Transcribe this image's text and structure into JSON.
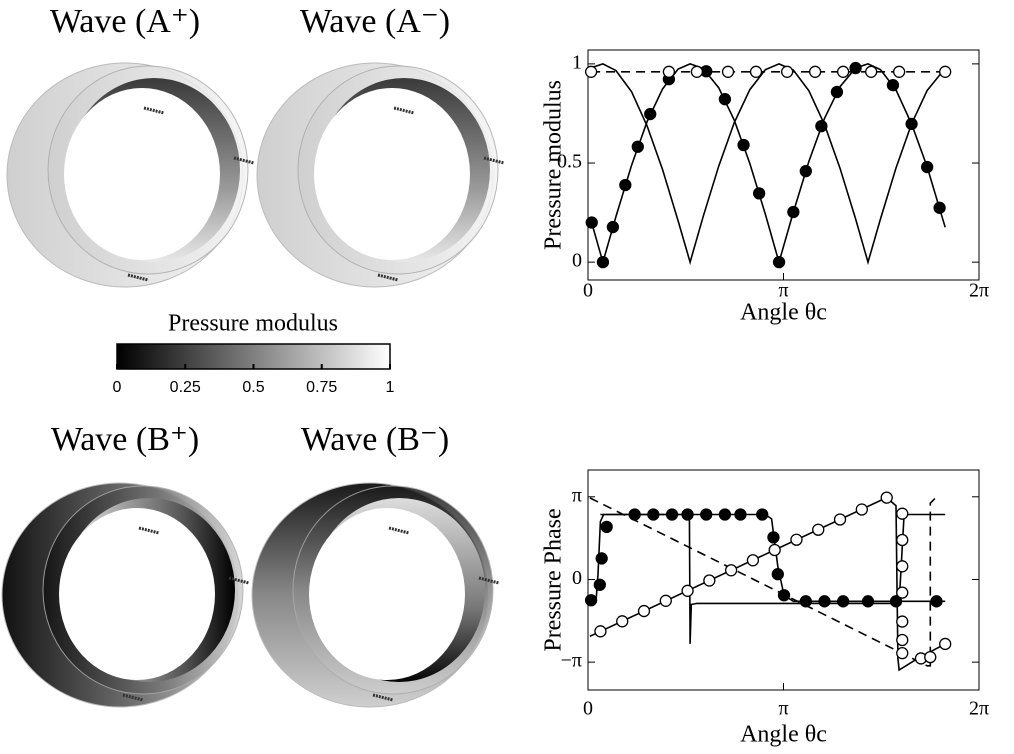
{
  "panels": {
    "labels": [
      "Wave (A⁺)",
      "Wave (A⁻)",
      "Wave (B⁺)",
      "Wave (B⁻)"
    ]
  },
  "colorbar": {
    "title": "Pressure modulus",
    "range": [
      0,
      1
    ],
    "ticks": [
      0,
      0.25,
      0.5,
      0.75,
      1
    ],
    "colors": [
      "#000000",
      "#ffffff"
    ]
  },
  "chart_data": [
    {
      "type": "line",
      "ylabel": "Pressure modulus",
      "xlabel": "Angle θc",
      "xlim": [
        0,
        6.28319
      ],
      "xticks": [
        0,
        {
          "value": 3.14159,
          "label": "π"
        },
        {
          "value": 6.28319,
          "label": "2π"
        }
      ],
      "ylim": [
        -0.09,
        1.07
      ],
      "yticks": [
        0,
        0.5,
        1
      ],
      "series": [
        {
          "line": "solid",
          "marker": "none",
          "color": "#000000",
          "x": [
            0.05,
            0.24,
            0.45,
            0.7,
            0.95,
            1.2,
            1.45,
            1.64,
            1.85,
            2.1,
            2.35,
            2.6,
            2.85,
            3.07,
            3.3,
            3.55,
            3.8,
            4.05,
            4.3,
            4.5,
            4.7,
            4.95,
            5.2,
            5.45,
            5.74
          ],
          "values": [
            0.98,
            1.0,
            0.966,
            0.859,
            0.687,
            0.465,
            0.207,
            0,
            0.229,
            0.484,
            0.703,
            0.87,
            0.971,
            1.0,
            0.968,
            0.864,
            0.694,
            0.474,
            0.218,
            0,
            0.218,
            0.475,
            0.698,
            0.866,
            0.978
          ]
        },
        {
          "line": "solid",
          "marker": "none",
          "color": "#000000",
          "x": [
            0.05,
            0.24,
            0.45,
            0.7,
            0.95,
            1.2,
            1.45,
            1.64,
            1.85,
            2.1,
            2.35,
            2.6,
            2.85,
            3.07,
            3.3,
            3.55,
            3.8,
            4.05,
            4.3,
            4.5,
            4.7,
            4.95,
            5.2,
            5.45,
            5.74
          ],
          "values": [
            0.209,
            0,
            0.231,
            0.489,
            0.709,
            0.875,
            0.974,
            1.0,
            0.977,
            0.88,
            0.717,
            0.498,
            0.241,
            0,
            0.253,
            0.508,
            0.725,
            0.885,
            0.979,
            1.0,
            0.971,
            0.869,
            0.697,
            0.48,
            0.176
          ]
        },
        {
          "line": "none",
          "marker": "filled",
          "color": "#000000",
          "x": [
            0.06,
            0.24,
            0.4,
            0.6,
            0.8,
            1.0,
            1.3,
            1.9,
            2.2,
            2.5,
            2.75,
            3.07,
            3.3,
            3.5,
            3.75,
            4.0,
            4.3,
            4.9,
            5.2,
            5.45,
            5.65
          ],
          "values": [
            0.2,
            0,
            0.177,
            0.389,
            0.582,
            0.747,
            0.923,
            0.963,
            0.822,
            0.591,
            0.347,
            0,
            0.253,
            0.459,
            0.686,
            0.858,
            0.979,
            0.893,
            0.697,
            0.48,
            0.274
          ]
        },
        {
          "line": "dashed",
          "marker": "none",
          "color": "#000000",
          "x": [
            0.05,
            5.74
          ],
          "values": [
            0.96,
            0.96
          ]
        },
        {
          "line": "none",
          "marker": "open",
          "color": "#000000",
          "x": [
            0.05,
            1.3,
            1.75,
            2.25,
            2.7,
            3.2,
            3.65,
            4.1,
            4.55,
            5.0,
            5.74
          ],
          "values": [
            0.96,
            0.96,
            0.96,
            0.96,
            0.96,
            0.96,
            0.96,
            0.96,
            0.96,
            0.96,
            0.96
          ]
        }
      ]
    },
    {
      "type": "line",
      "ylabel": "Pressure Phase",
      "xlabel": "Angle θc",
      "xlim": [
        0,
        6.28319
      ],
      "xticks": [
        0,
        {
          "value": 3.14159,
          "label": "π"
        },
        {
          "value": 6.28319,
          "label": "2π"
        }
      ],
      "ylim": [
        -4.2,
        4.16
      ],
      "yticks": [
        {
          "value": -3.14159,
          "label": "−π"
        },
        0,
        {
          "value": 3.14159,
          "label": "π"
        }
      ],
      "series": [
        {
          "line": "dashed",
          "marker": "none",
          "color": "#000000",
          "x": [
            0.03,
            5.45,
            5.5,
            5.5,
            5.6
          ],
          "values": [
            3.1,
            -3.28,
            -3.28,
            2.9,
            3.14
          ]
        },
        {
          "line": "solid",
          "marker": "none",
          "color": "#000000",
          "x": [
            0.2,
            1.63,
            1.64,
            1.66,
            1.75,
            5.0,
            5.08,
            5.74
          ],
          "values": [
            2.47,
            2.47,
            -2.45,
            -0.95,
            -0.91,
            -0.91,
            2.47,
            2.47
          ]
        },
        {
          "line": "solid",
          "marker": "none",
          "color": "#000000",
          "x": [
            0.03,
            0.13,
            0.16,
            0.2,
            0.25,
            2.85,
            2.95,
            3.05,
            3.15,
            3.3,
            5.74
          ],
          "values": [
            -0.79,
            -0.79,
            0.2,
            2.2,
            2.47,
            2.47,
            2.3,
            0.5,
            -0.6,
            -0.83,
            -0.83
          ]
        },
        {
          "line": "none",
          "marker": "filled",
          "color": "#000000",
          "x": [
            0.05,
            0.19,
            0.22,
            0.3,
            0.75,
            1.05,
            1.35,
            1.6,
            1.9,
            2.2,
            2.45,
            2.8,
            2.98,
            3.05,
            3.15,
            3.5,
            3.8,
            4.1,
            4.5,
            4.95,
            5.6
          ],
          "values": [
            -0.79,
            -0.2,
            0.8,
            2.0,
            2.47,
            2.47,
            2.47,
            2.47,
            2.47,
            2.47,
            2.47,
            2.47,
            1.6,
            0.2,
            -0.6,
            -0.83,
            -0.83,
            -0.83,
            -0.83,
            -0.83,
            -0.83
          ]
        },
        {
          "line": "solid",
          "marker": "none",
          "color": "#000000",
          "x": [
            0.03,
            4.8,
            4.95,
            4.98,
            5.0,
            5.3,
            5.74
          ],
          "values": [
            -2.16,
            3.11,
            2.8,
            -3.0,
            -3.44,
            -3.0,
            -2.45
          ]
        },
        {
          "line": "none",
          "marker": "open",
          "color": "#000000",
          "x": [
            0.2,
            0.55,
            0.9,
            1.25,
            1.6,
            1.95,
            2.3,
            2.65,
            3.0,
            3.35,
            3.7,
            4.05,
            4.4,
            4.8,
            5.05,
            5.05,
            5.05,
            5.05,
            5.05,
            5.05,
            5.05,
            5.35,
            5.5,
            5.74
          ],
          "values": [
            -1.97,
            -1.59,
            -1.2,
            -0.81,
            -0.43,
            -0.04,
            0.35,
            0.73,
            1.12,
            1.51,
            1.89,
            2.28,
            2.66,
            3.11,
            2.5,
            1.5,
            0.5,
            -0.5,
            -1.6,
            -2.3,
            -2.8,
            -3.0,
            -2.95,
            -2.45
          ]
        }
      ]
    }
  ]
}
